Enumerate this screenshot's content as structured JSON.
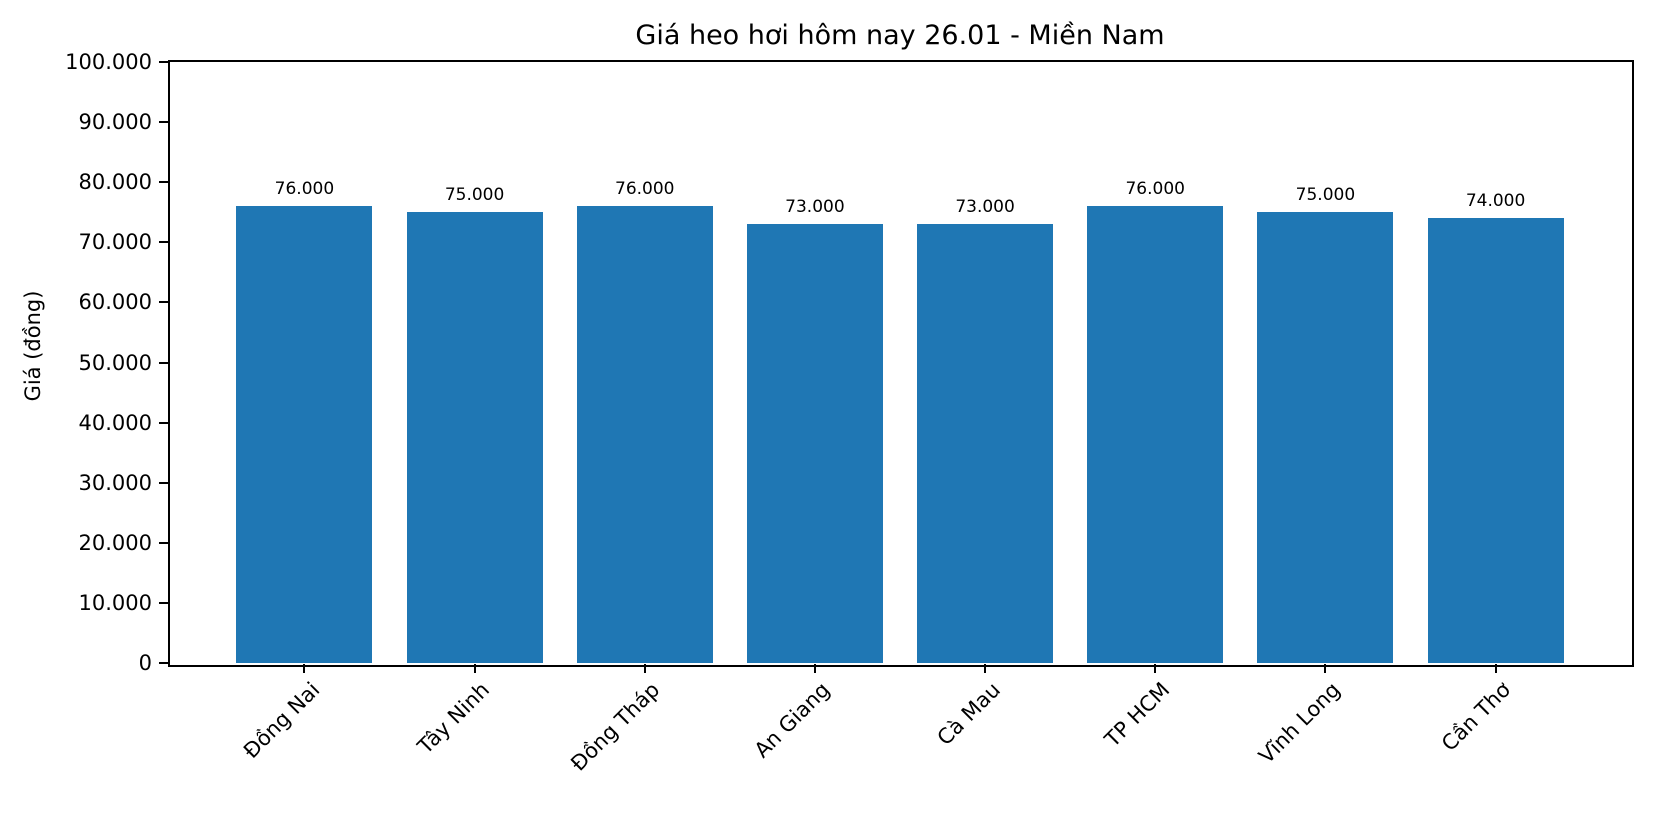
{
  "figure": {
    "background": "#ffffff"
  },
  "chart_data": {
    "type": "bar",
    "title": "Giá heo hơi hôm nay 26.01 - Miền Nam",
    "xlabel": "",
    "ylabel": "Giá (đồng)",
    "categories": [
      "Đồng Nai",
      "Tây Ninh",
      "Đồng Tháp",
      "An Giang",
      "Cà Mau",
      "TP HCM",
      "Vĩnh Long",
      "Cần Thơ"
    ],
    "values": [
      76000,
      75000,
      76000,
      73000,
      73000,
      76000,
      75000,
      74000
    ],
    "bar_value_labels": [
      "76.000",
      "75.000",
      "76.000",
      "73.000",
      "73.000",
      "76.000",
      "75.000",
      "74.000"
    ],
    "ylim": [
      0,
      100000
    ],
    "yticks": [
      0,
      10000,
      20000,
      30000,
      40000,
      50000,
      60000,
      70000,
      80000,
      90000,
      100000
    ],
    "ytick_labels": [
      "0",
      "10.000",
      "20.000",
      "30.000",
      "40.000",
      "50.000",
      "60.000",
      "70.000",
      "80.000",
      "90.000",
      "100.000"
    ],
    "bar_color": "#1f77b4",
    "axis_color": "#000000",
    "text_color": "#000000",
    "grid": false,
    "legend": null,
    "x_label_rotation_deg": 45,
    "bar_width_fraction": 0.8
  }
}
